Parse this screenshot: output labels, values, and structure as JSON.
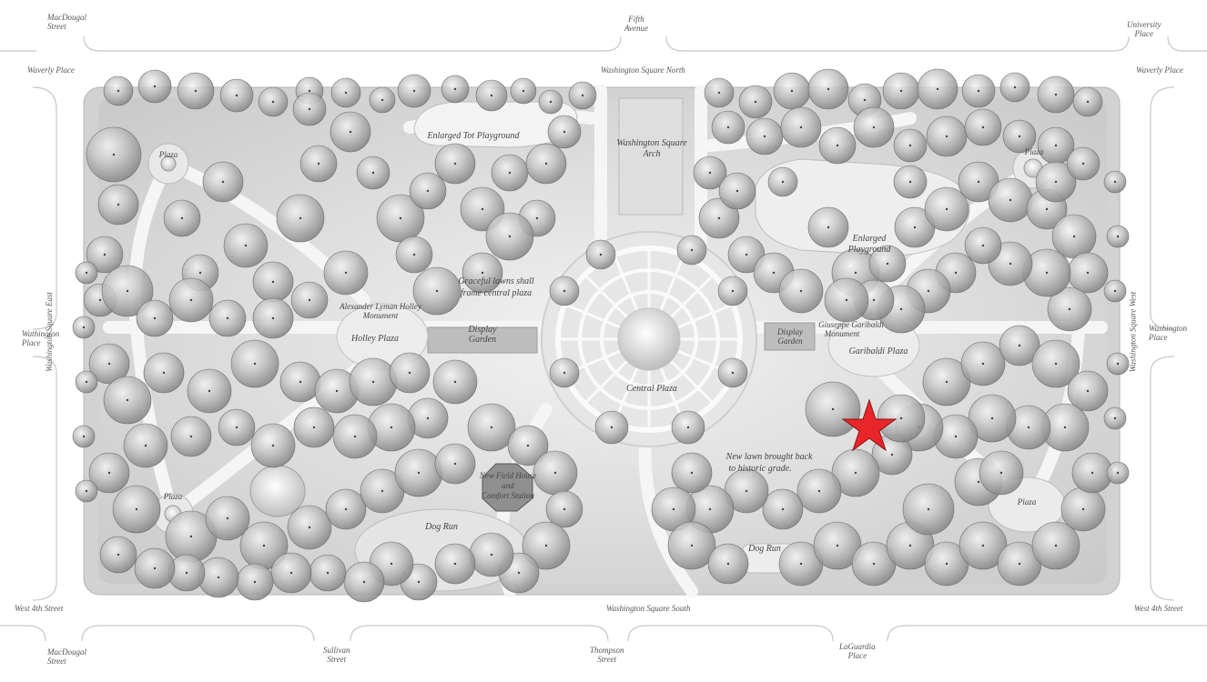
{
  "map": {
    "streets": {
      "top_left": "MacDougal\nStreet",
      "top_center": "Fifth\nAvenue",
      "top_right": "University\nPlace",
      "waverly_left": "Waverly Place",
      "waverly_right": "Waverly Place",
      "north": "Washington Square North",
      "south": "Washington Square South",
      "east": "Washington Square East",
      "west": "Washington Square West",
      "washington_place_left": "Wathington\nPlace",
      "washington_place_right": "Washington\nPlace",
      "west4_left": "West 4th Street",
      "west4_right": "West 4th Street",
      "bottom_macdougal": "MacDougal\nStreet",
      "bottom_sullivan": "Sullivan\nStreet",
      "bottom_thompson": "Thompson\nStreet",
      "bottom_laguardia": "LaGuardia\nPlace"
    },
    "areas": {
      "tot_playground": "Enlarged Tot Playground",
      "arch": "Washington Square\nArch",
      "enlarged_playground": "Enlarged\nPlayground",
      "plaza_nw": "Plaza",
      "plaza_ne": "Plaza",
      "plaza_sw": "Plaza",
      "plaza_se": "Plaza",
      "graceful_lawns": "Graceful lawns shall\nframe central plaza",
      "holley_monument": "Alexander Lyman Holley\nMonument",
      "holley_plaza": "Holley Plaza",
      "display_garden_w": "Display\nGarden",
      "display_garden_e": "Display\nGarden",
      "garibaldi_monument": "Giuseppe Garibaldi\nMonument",
      "garibaldi_plaza": "Garibaldi Plaza",
      "central_plaza": "Central Plaza",
      "new_lawn": "New lawn brought back\nto historic grade.",
      "field_house": "New Field House\nand\nComfort Station",
      "dog_run_w": "Dog Run",
      "dog_run_e": "Dog Run"
    },
    "marker": {
      "color": "#e8262a",
      "icon": "star-icon"
    }
  }
}
